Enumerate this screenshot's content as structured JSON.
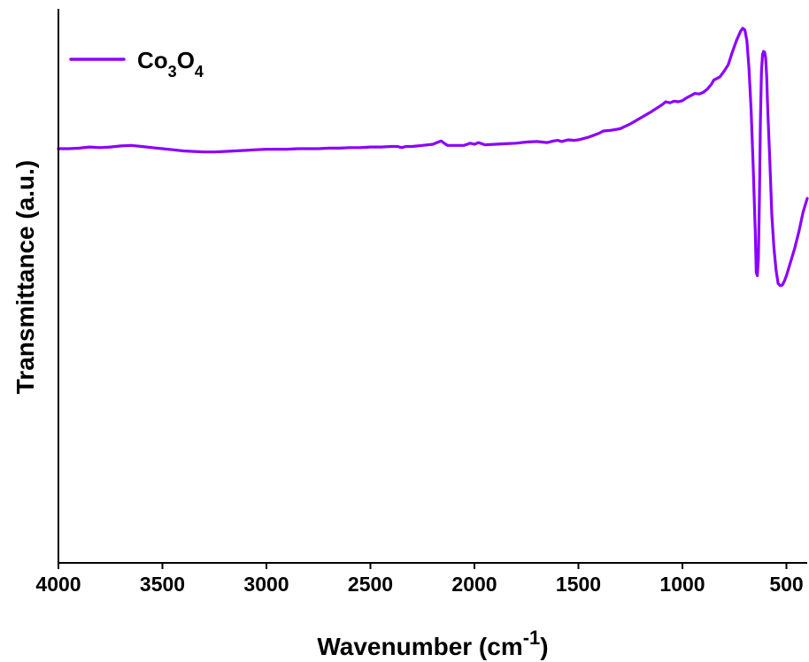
{
  "chart_data": {
    "type": "line",
    "xlabel": "Wavenumber (cm",
    "xlabel_sup": "-1",
    "xlabel_close": ")",
    "ylabel": "Transmittance (a.u.)",
    "xlim": [
      4000,
      400
    ],
    "x_reversed": true,
    "ylim": [
      0,
      100
    ],
    "y_tick_labels_shown": false,
    "x_ticks": [
      4000,
      3500,
      3000,
      2500,
      2000,
      1500,
      1000,
      500
    ],
    "x_tick_labels": [
      "4000",
      "3500",
      "3000",
      "2500",
      "2000",
      "1500",
      "1000",
      "500"
    ],
    "grid": false,
    "legend_position": "top-left",
    "series": [
      {
        "name": "Co3O4",
        "legend_main": "Co",
        "legend_sub1": "3",
        "legend_mid": "O",
        "legend_sub2": "4",
        "color": "#8B00FF",
        "x": [
          4000,
          3950,
          3900,
          3850,
          3800,
          3750,
          3700,
          3650,
          3600,
          3550,
          3500,
          3450,
          3400,
          3350,
          3300,
          3250,
          3200,
          3150,
          3100,
          3050,
          3000,
          2950,
          2900,
          2850,
          2800,
          2750,
          2700,
          2650,
          2600,
          2550,
          2500,
          2450,
          2400,
          2370,
          2350,
          2330,
          2300,
          2250,
          2200,
          2160,
          2130,
          2100,
          2050,
          2020,
          2000,
          1980,
          1950,
          1900,
          1850,
          1800,
          1750,
          1700,
          1650,
          1620,
          1600,
          1580,
          1550,
          1520,
          1500,
          1480,
          1450,
          1400,
          1380,
          1350,
          1300,
          1250,
          1200,
          1150,
          1100,
          1080,
          1060,
          1040,
          1020,
          1000,
          980,
          960,
          940,
          920,
          900,
          880,
          860,
          850,
          820,
          800,
          780,
          760,
          740,
          720,
          710,
          700,
          690,
          680,
          670,
          660,
          650,
          645,
          640,
          635,
          630,
          625,
          620,
          615,
          610,
          605,
          600,
          595,
          590,
          580,
          570,
          560,
          550,
          540,
          530,
          520,
          510,
          500,
          480,
          460,
          440,
          420,
          400
        ],
        "y": [
          75.0,
          75.0,
          75.1,
          75.3,
          75.2,
          75.3,
          75.5,
          75.6,
          75.4,
          75.2,
          75.0,
          74.8,
          74.6,
          74.5,
          74.4,
          74.4,
          74.5,
          74.6,
          74.7,
          74.8,
          74.9,
          74.9,
          74.9,
          75.0,
          75.0,
          75.0,
          75.1,
          75.1,
          75.2,
          75.2,
          75.3,
          75.3,
          75.4,
          75.4,
          75.2,
          75.4,
          75.4,
          75.6,
          75.8,
          76.4,
          75.6,
          75.6,
          75.6,
          76.0,
          75.8,
          76.1,
          75.7,
          75.8,
          75.9,
          76.0,
          76.2,
          76.3,
          76.1,
          76.4,
          76.5,
          76.3,
          76.6,
          76.5,
          76.6,
          76.8,
          77.1,
          77.8,
          78.2,
          78.3,
          78.6,
          79.5,
          80.6,
          81.7,
          82.9,
          83.5,
          83.3,
          83.6,
          83.5,
          83.7,
          84.2,
          84.6,
          85.0,
          84.9,
          85.2,
          85.8,
          86.7,
          87.4,
          88.0,
          89.0,
          90.2,
          92.5,
          94.6,
          96.3,
          96.8,
          96.5,
          94.6,
          89.5,
          82.0,
          72.0,
          60.0,
          52.6,
          52.0,
          55.0,
          66.0,
          80.0,
          89.0,
          92.0,
          92.6,
          92.5,
          91.5,
          88.0,
          82.0,
          73.0,
          63.0,
          57.0,
          53.0,
          50.6,
          50.2,
          50.3,
          51.0,
          52.0,
          54.5,
          57.0,
          60.0,
          63.5,
          66.0
        ]
      }
    ]
  }
}
